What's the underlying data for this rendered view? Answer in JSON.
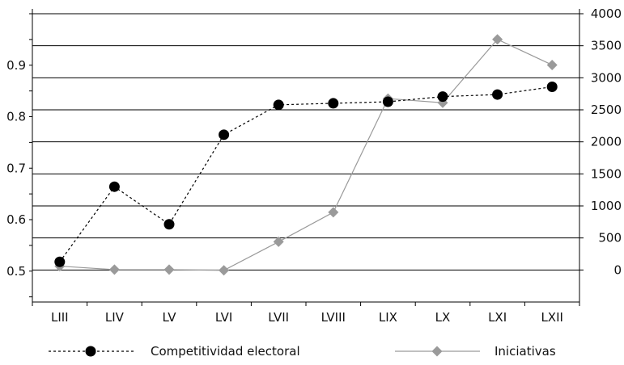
{
  "chart_data": {
    "type": "line",
    "categories": [
      "LIII",
      "LIV",
      "LV",
      "LVI",
      "LVII",
      "LVIII",
      "LIX",
      "LX",
      "LXI",
      "LXII"
    ],
    "series": [
      {
        "name": "Competitividad electoral",
        "axis": "left",
        "values": [
          0.518,
          0.664,
          0.591,
          0.765,
          0.823,
          0.826,
          0.829,
          0.839,
          0.843,
          0.858
        ],
        "color": "#000000",
        "line_style": "dashed",
        "marker": "circle"
      },
      {
        "name": "Iniciativas",
        "axis": "right",
        "values": [
          60,
          5,
          5,
          -5,
          440,
          900,
          2675,
          2610,
          3600,
          3200
        ],
        "color": "#9a9a9a",
        "line_style": "solid",
        "marker": "diamond"
      }
    ],
    "y_left": {
      "ylim": [
        0.44,
        1.0
      ],
      "ticks": [
        "0.5",
        "0.6",
        "0.7",
        "0.8",
        "0.9"
      ]
    },
    "y_right": {
      "ylim": [
        -500,
        4000
      ],
      "ticks": [
        "0",
        "500",
        "1000",
        "1500",
        "2000",
        "2500",
        "3000",
        "3500",
        "4000"
      ]
    },
    "grid": true,
    "legend": "bottom"
  }
}
